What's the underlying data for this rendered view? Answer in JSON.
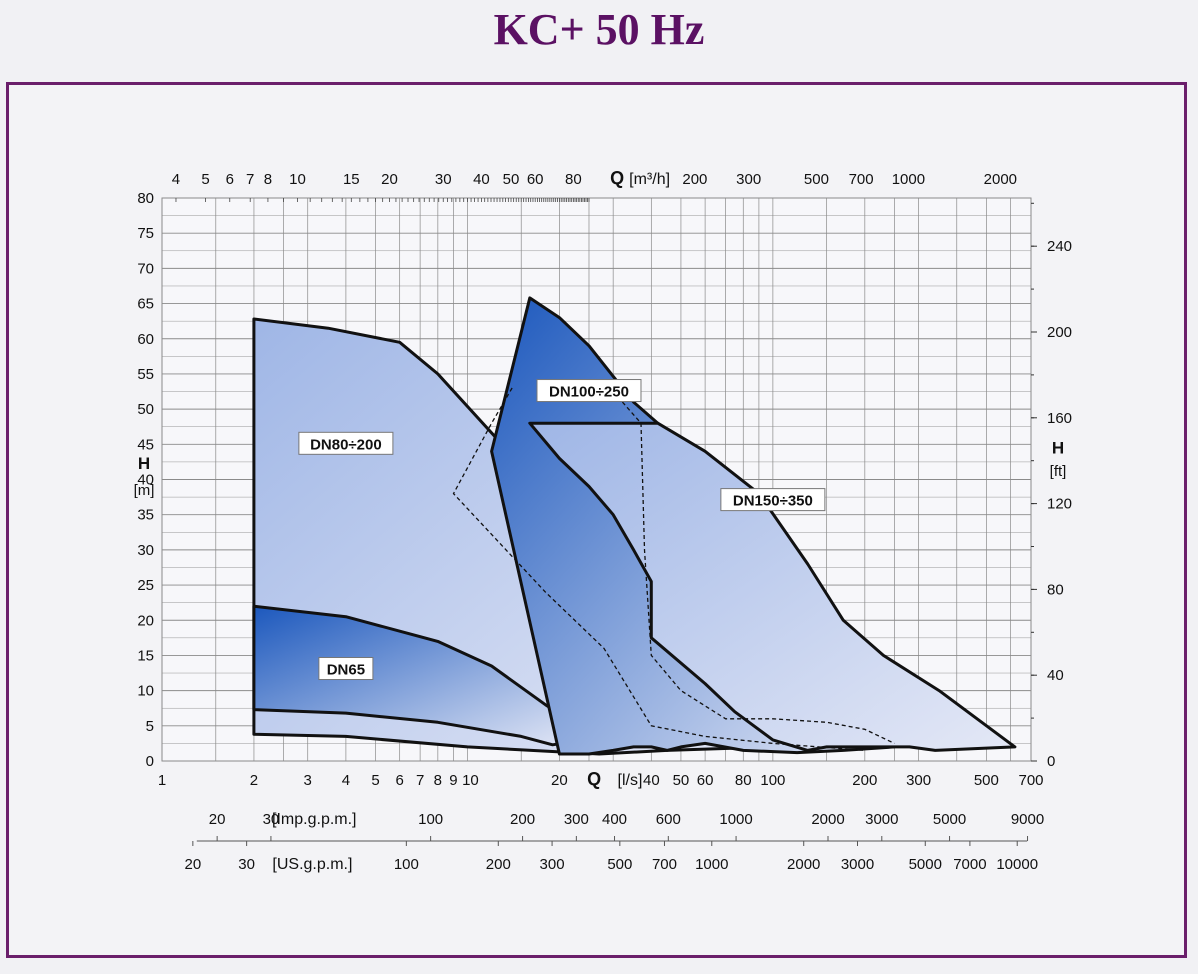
{
  "title": "KC+ 50 Hz",
  "colors": {
    "title": "#5b1163",
    "frame": "#6b1f6b",
    "curve": "#111111",
    "grid": "#8a8a8a",
    "fill_light": "#e4e8f6",
    "fill_mid": "#9fb6e6",
    "fill_dark": "#1c58bd"
  },
  "chart_data": {
    "type": "area",
    "title": "KC+ 50 Hz",
    "x_scale": "log",
    "xlabel": "Q [l/s]",
    "xlim": [
      1,
      700
    ],
    "ylabel": "H [m]",
    "ylim": [
      0,
      80
    ],
    "grid": true,
    "axes": {
      "left": {
        "label_main": "H",
        "label_unit": "[m]",
        "ticks": [
          0,
          5,
          10,
          15,
          20,
          25,
          30,
          35,
          40,
          45,
          50,
          55,
          60,
          65,
          70,
          75,
          80
        ]
      },
      "right": {
        "label_main": "H",
        "label_unit": "[ft]",
        "ticks": [
          {
            "label": "0",
            "value": 0
          },
          {
            "label": "40",
            "value": 40
          },
          {
            "label": "80",
            "value": 80
          },
          {
            "label": "120",
            "value": 120
          },
          {
            "label": "160",
            "value": 160
          },
          {
            "label": "200",
            "value": 200
          },
          {
            "label": "240",
            "value": 240
          }
        ]
      },
      "bottom": {
        "unit_text": "[l/s]",
        "ticks": [
          {
            "label": "1",
            "value": 1
          },
          {
            "label": "2",
            "value": 2
          },
          {
            "label": "3",
            "value": 3
          },
          {
            "label": "4",
            "value": 4
          },
          {
            "label": "5",
            "value": 5
          },
          {
            "label": "6",
            "value": 6
          },
          {
            "label": "7",
            "value": 7
          },
          {
            "label": "8",
            "value": 8
          },
          {
            "label": "9",
            "value": 9
          },
          {
            "label": "10",
            "value": 10
          },
          {
            "label": "20",
            "value": 20
          },
          {
            "label": "40",
            "value": 40
          },
          {
            "label": "50",
            "value": 50
          },
          {
            "label": "60",
            "value": 60
          },
          {
            "label": "80",
            "value": 80
          },
          {
            "label": "100",
            "value": 100
          },
          {
            "label": "200",
            "value": 200
          },
          {
            "label": "300",
            "value": 300
          },
          {
            "label": "500",
            "value": 500
          },
          {
            "label": "700",
            "value": 700
          }
        ]
      },
      "top": {
        "unit_text": "[m³/h]",
        "ticks": [
          {
            "label": "4",
            "value": 4
          },
          {
            "label": "5",
            "value": 5
          },
          {
            "label": "6",
            "value": 6
          },
          {
            "label": "7",
            "value": 7
          },
          {
            "label": "8",
            "value": 8
          },
          {
            "label": "10",
            "value": 10
          },
          {
            "label": "15",
            "value": 15
          },
          {
            "label": "20",
            "value": 20
          },
          {
            "label": "30",
            "value": 30
          },
          {
            "label": "40",
            "value": 40
          },
          {
            "label": "50",
            "value": 50
          },
          {
            "label": "60",
            "value": 60
          },
          {
            "label": "80",
            "value": 80
          },
          {
            "label": "200",
            "value": 200
          },
          {
            "label": "300",
            "value": 300
          },
          {
            "label": "500",
            "value": 500
          },
          {
            "label": "700",
            "value": 700
          },
          {
            "label": "1000",
            "value": 1000
          },
          {
            "label": "2000",
            "value": 2000
          }
        ]
      },
      "imp_gpm": {
        "label": "[Imp.g.p.m.]",
        "ticks": [
          {
            "label": "20",
            "value": 20
          },
          {
            "label": "30",
            "value": 30
          },
          {
            "label": "100",
            "value": 100
          },
          {
            "label": "200",
            "value": 200
          },
          {
            "label": "300",
            "value": 300
          },
          {
            "label": "400",
            "value": 400
          },
          {
            "label": "600",
            "value": 600
          },
          {
            "label": "1000",
            "value": 1000
          },
          {
            "label": "2000",
            "value": 2000
          },
          {
            "label": "3000",
            "value": 3000
          },
          {
            "label": "5000",
            "value": 5000
          },
          {
            "label": "9000",
            "value": 9000
          }
        ]
      },
      "us_gpm": {
        "label": "[US.g.p.m.]",
        "ticks": [
          {
            "label": "20",
            "value": 20
          },
          {
            "label": "30",
            "value": 30
          },
          {
            "label": "100",
            "value": 100
          },
          {
            "label": "200",
            "value": 200
          },
          {
            "label": "300",
            "value": 300
          },
          {
            "label": "500",
            "value": 500
          },
          {
            "label": "700",
            "value": 700
          },
          {
            "label": "1000",
            "value": 1000
          },
          {
            "label": "2000",
            "value": 2000
          },
          {
            "label": "3000",
            "value": 3000
          },
          {
            "label": "5000",
            "value": 5000
          },
          {
            "label": "7000",
            "value": 7000
          },
          {
            "label": "10000",
            "value": 10000
          }
        ]
      }
    },
    "regions": [
      {
        "name": "DN80÷200",
        "label_at": [
          4,
          45
        ],
        "shade": "mid",
        "outline": [
          [
            2,
            62.8
          ],
          [
            3.5,
            61.5
          ],
          [
            6,
            59.5
          ],
          [
            8,
            55
          ],
          [
            15,
            42
          ],
          [
            20,
            35
          ],
          [
            30,
            24
          ],
          [
            40,
            15
          ],
          [
            60,
            7
          ],
          [
            100,
            2
          ],
          [
            45,
            1.5
          ],
          [
            27,
            1
          ],
          [
            18,
            1.4
          ],
          [
            10,
            2
          ],
          [
            4,
            3.5
          ],
          [
            2,
            3.8
          ]
        ]
      },
      {
        "name": "DN65",
        "label_at": [
          4,
          13
        ],
        "shade": "dark",
        "outline": [
          [
            2,
            22
          ],
          [
            4,
            20.5
          ],
          [
            8,
            17
          ],
          [
            12,
            13.5
          ],
          [
            18,
            8
          ],
          [
            23,
            5
          ],
          [
            24,
            3
          ],
          [
            19,
            2.3
          ],
          [
            15,
            3.5
          ],
          [
            8,
            5.5
          ],
          [
            4,
            6.8
          ],
          [
            2,
            7.3
          ]
        ]
      },
      {
        "name": "DN100÷250",
        "label_at": [
          25,
          52.5
        ],
        "shade": "dark",
        "outline": [
          [
            16,
            65.8
          ],
          [
            20,
            63
          ],
          [
            25,
            59
          ],
          [
            35,
            51
          ],
          [
            42,
            48
          ],
          [
            50,
            37
          ],
          [
            50,
            26.5
          ],
          [
            70,
            21
          ],
          [
            90,
            16
          ],
          [
            130,
            10
          ],
          [
            200,
            4
          ],
          [
            250,
            2
          ],
          [
            170,
            1.5
          ],
          [
            120,
            1.2
          ],
          [
            80,
            1.5
          ],
          [
            60,
            2.5
          ],
          [
            50,
            2
          ],
          [
            45,
            1.5
          ],
          [
            40,
            2
          ],
          [
            35,
            2
          ],
          [
            30,
            1.5
          ],
          [
            25,
            1
          ],
          [
            20,
            1
          ],
          [
            12,
            44
          ]
        ]
      },
      {
        "name": "DN150÷350",
        "label_at": [
          100,
          37
        ],
        "shade": "mid",
        "outline": [
          [
            42,
            48
          ],
          [
            60,
            44
          ],
          [
            90,
            38
          ],
          [
            130,
            28
          ],
          [
            170,
            20
          ],
          [
            230,
            15
          ],
          [
            350,
            10
          ],
          [
            620,
            2
          ],
          [
            340,
            1.5
          ],
          [
            280,
            2
          ],
          [
            200,
            2
          ],
          [
            150,
            2
          ],
          [
            130,
            1.5
          ],
          [
            100,
            3
          ],
          [
            75,
            7
          ],
          [
            60,
            11
          ],
          [
            40,
            17.5
          ],
          [
            40,
            25.5
          ],
          [
            35,
            30
          ],
          [
            30,
            35
          ],
          [
            25,
            39
          ],
          [
            20,
            43
          ],
          [
            16,
            48
          ]
        ]
      }
    ],
    "dashed_envelopes": [
      {
        "name": "DN100÷250-dashed",
        "points": [
          [
            14,
            53
          ],
          [
            12,
            48
          ],
          [
            9,
            38
          ],
          [
            18,
            24
          ],
          [
            28,
            16
          ],
          [
            40,
            5
          ],
          [
            60,
            3.5
          ],
          [
            100,
            2.5
          ],
          [
            200,
            1.5
          ]
        ]
      },
      {
        "name": "DN150÷350-dashed",
        "points": [
          [
            30,
            52.5
          ],
          [
            37,
            48
          ],
          [
            38,
            30
          ],
          [
            40,
            15
          ],
          [
            50,
            10
          ],
          [
            70,
            6
          ],
          [
            100,
            6
          ],
          [
            150,
            5.5
          ],
          [
            200,
            4.5
          ],
          [
            250,
            2.5
          ]
        ]
      }
    ]
  }
}
